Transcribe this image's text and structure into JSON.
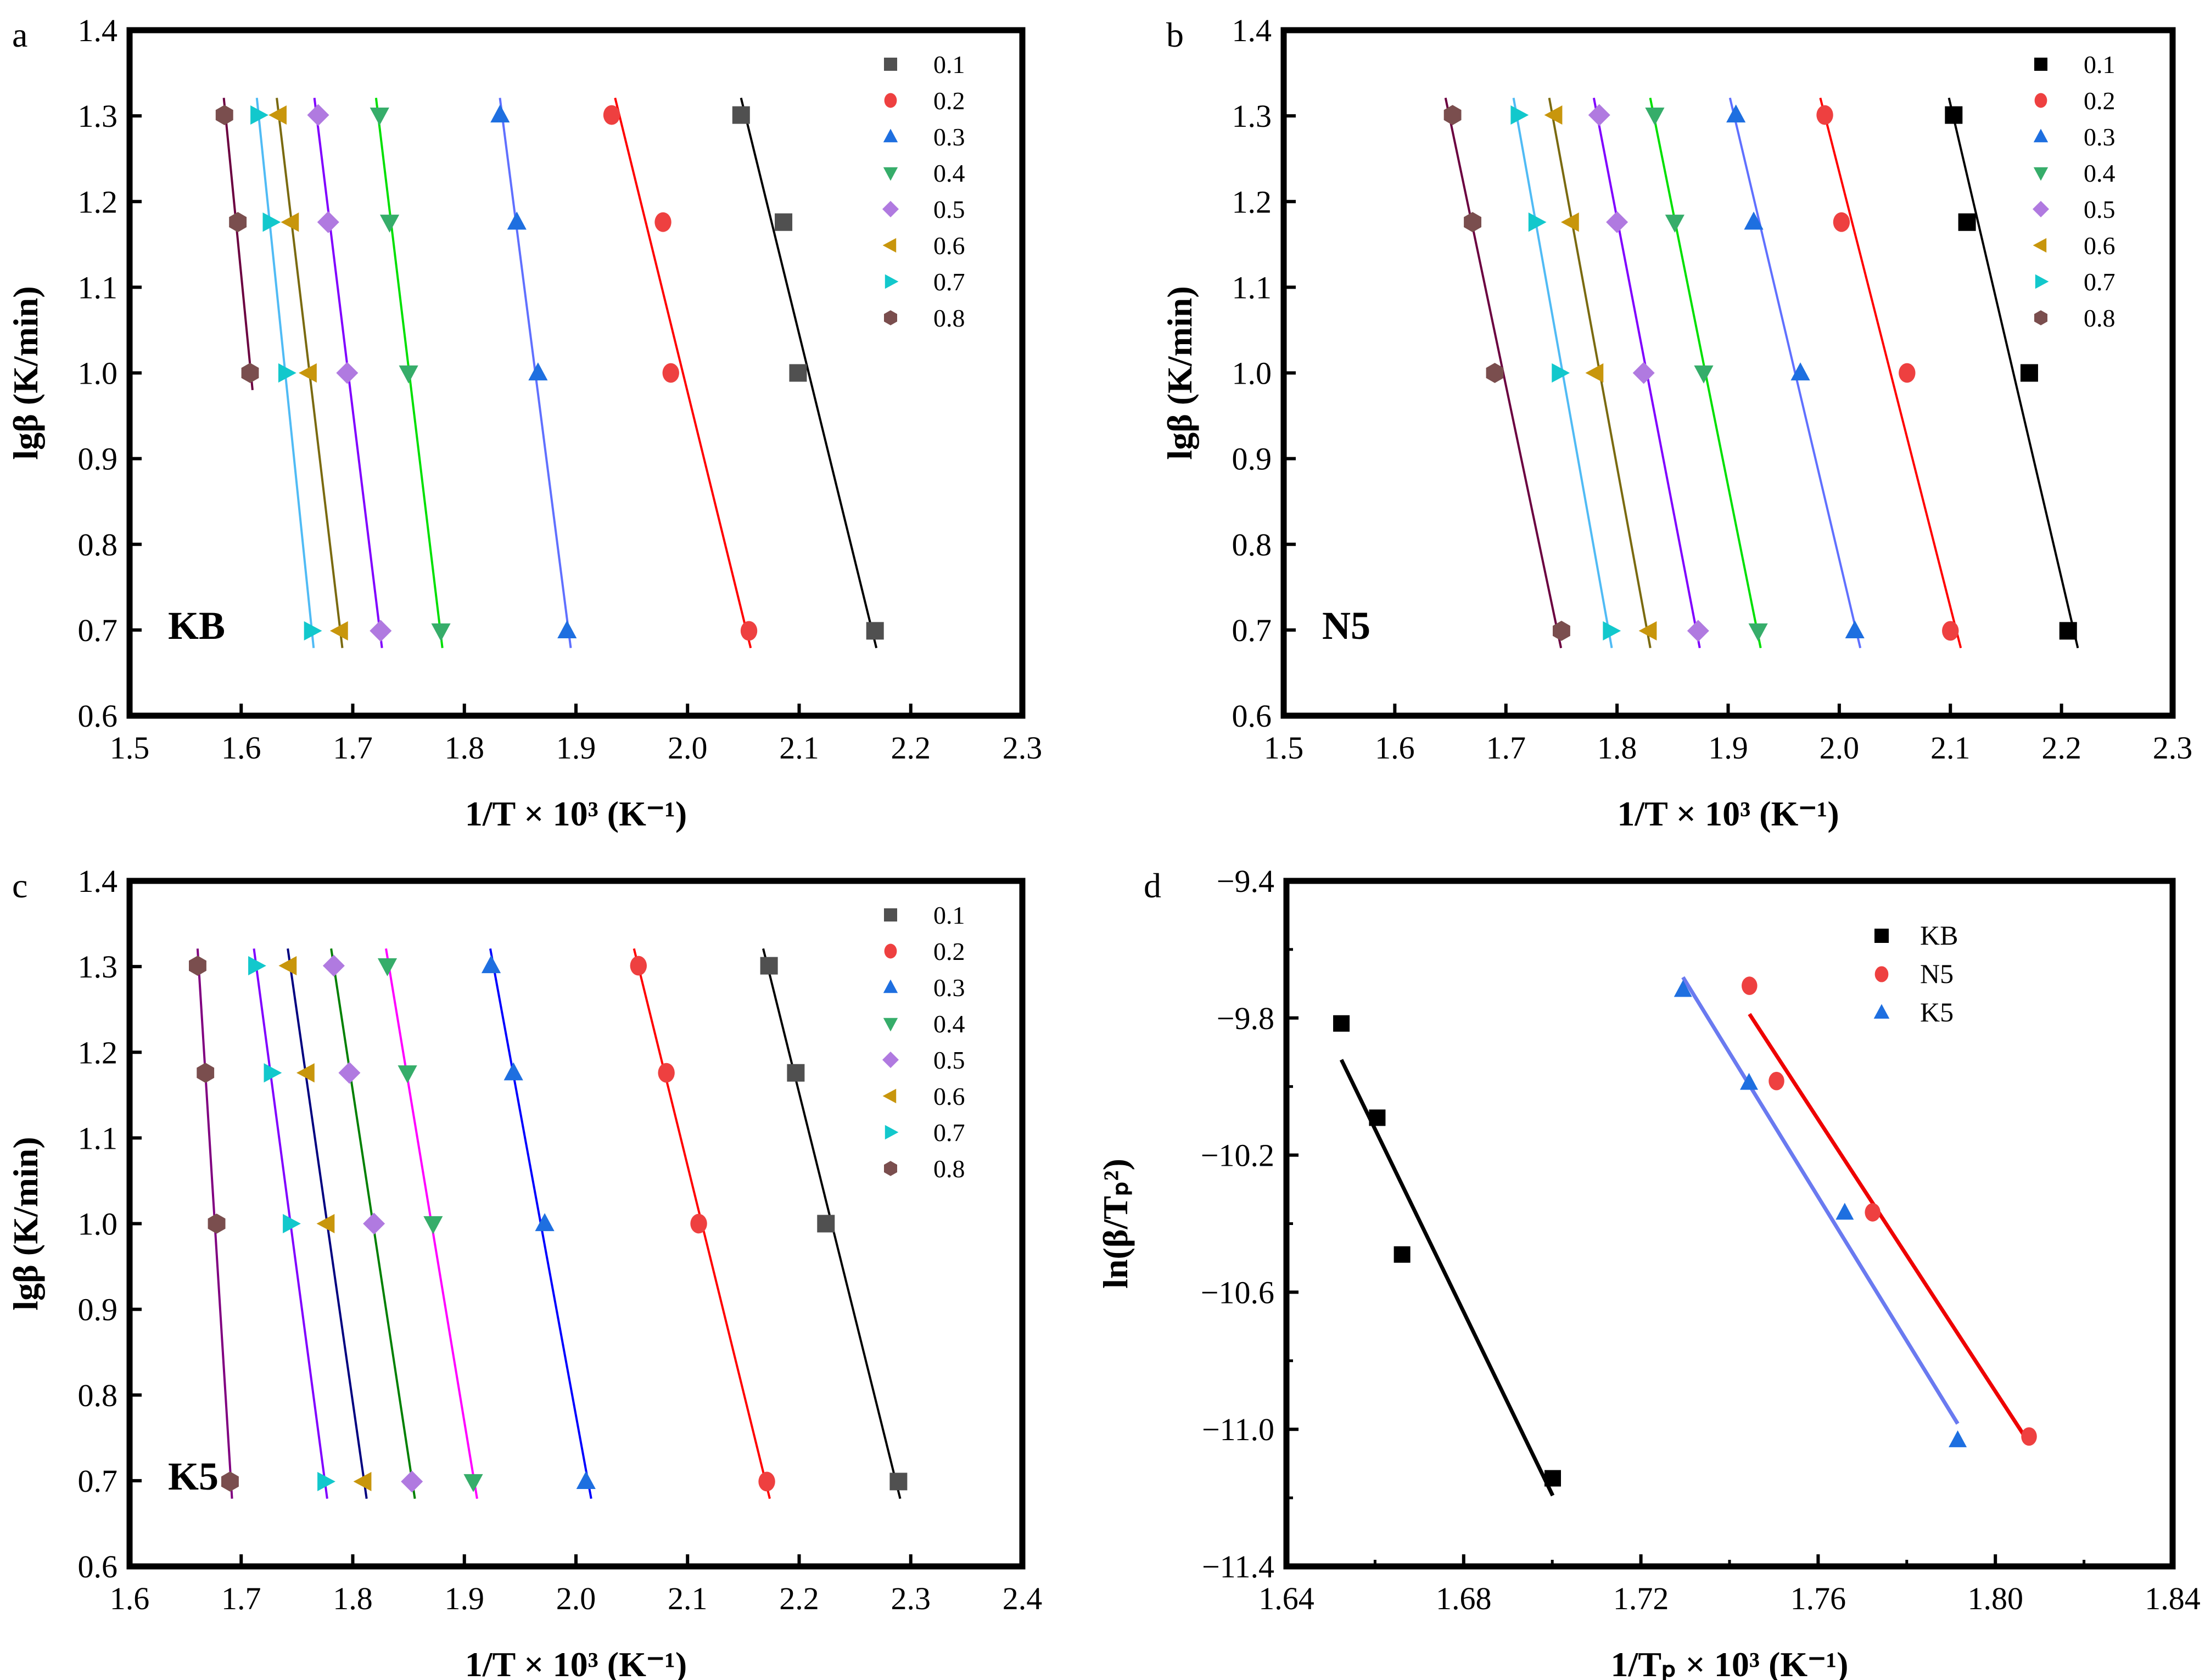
{
  "figure": {
    "background": "#ffffff"
  },
  "chart_data": [
    {
      "id": "a",
      "panel_letter": "a",
      "sample_label": "KB",
      "type": "scatter",
      "fit_lines": true,
      "xlabel": "1/T × 10³ (K⁻¹)",
      "ylabel": "lgβ (K/min)",
      "xlim": [
        1.5,
        2.3
      ],
      "ylim": [
        0.6,
        1.4
      ],
      "xticks": [
        1.5,
        1.6,
        1.7,
        1.8,
        1.9,
        2.0,
        2.1,
        2.2,
        2.3
      ],
      "xtick_labels": [
        "1.5",
        "1.6",
        "1.7",
        "1.8",
        "1.9",
        "2.0",
        "2.1",
        "2.2",
        "2.3"
      ],
      "yticks": [
        0.6,
        0.7,
        0.8,
        0.9,
        1.0,
        1.1,
        1.2,
        1.3,
        1.4
      ],
      "ytick_labels": [
        "0.6",
        "0.7",
        "0.8",
        "0.9",
        "1.0",
        "1.1",
        "1.2",
        "1.3",
        "1.4"
      ],
      "legend_position": "top-right",
      "series": [
        {
          "name": "0.1",
          "marker": "square",
          "marker_color": "#505050",
          "line_color": "#000000",
          "x": [
            2.048,
            2.086,
            2.099,
            2.168
          ],
          "y": [
            1.301,
            1.176,
            1.0,
            0.699
          ]
        },
        {
          "name": "0.2",
          "marker": "circle",
          "marker_color": "#ee4040",
          "line_color": "#ff0000",
          "x": [
            1.932,
            1.978,
            1.985,
            2.055
          ],
          "y": [
            1.301,
            1.176,
            1.0,
            0.699
          ]
        },
        {
          "name": "0.3",
          "marker": "triangle-up",
          "marker_color": "#1e6fe0",
          "line_color": "#6070ff",
          "x": [
            1.832,
            1.847,
            1.866,
            1.892
          ],
          "y": [
            1.301,
            1.176,
            1.0,
            0.699
          ]
        },
        {
          "name": "0.4",
          "marker": "triangle-down",
          "marker_color": "#36ad6a",
          "line_color": "#00e000",
          "x": [
            1.724,
            1.733,
            1.75,
            1.779
          ],
          "y": [
            1.301,
            1.176,
            1.0,
            0.699
          ]
        },
        {
          "name": "0.5",
          "marker": "diamond",
          "marker_color": "#b07ae0",
          "line_color": "#8000ff",
          "x": [
            1.669,
            1.678,
            1.695,
            1.725
          ],
          "y": [
            1.301,
            1.176,
            1.0,
            0.699
          ]
        },
        {
          "name": "0.6",
          "marker": "triangle-left",
          "marker_color": "#c8960c",
          "line_color": "#7a6a10",
          "x": [
            1.634,
            1.645,
            1.661,
            1.689
          ],
          "y": [
            1.301,
            1.176,
            1.0,
            0.699
          ]
        },
        {
          "name": "0.7",
          "marker": "triangle-right",
          "marker_color": "#12c8cc",
          "line_color": "#50bbf5",
          "x": [
            1.615,
            1.626,
            1.64,
            1.663
          ],
          "y": [
            1.301,
            1.176,
            1.0,
            0.699
          ]
        },
        {
          "name": "0.8",
          "marker": "hexagon",
          "marker_color": "#7a4e4e",
          "line_color": "#6b0040",
          "x": [
            1.585,
            1.597,
            1.608
          ],
          "y": [
            1.301,
            1.176,
            1.0
          ]
        }
      ]
    },
    {
      "id": "b",
      "panel_letter": "b",
      "sample_label": "N5",
      "type": "scatter",
      "fit_lines": true,
      "xlabel": "1/T × 10³ (K⁻¹)",
      "ylabel": "lgβ (K/min)",
      "xlim": [
        1.5,
        2.3
      ],
      "ylim": [
        0.6,
        1.4
      ],
      "xticks": [
        1.5,
        1.6,
        1.7,
        1.8,
        1.9,
        2.0,
        2.1,
        2.2,
        2.3
      ],
      "xtick_labels": [
        "1.5",
        "1.6",
        "1.7",
        "1.8",
        "1.9",
        "2.0",
        "2.1",
        "2.2",
        "2.3"
      ],
      "yticks": [
        0.6,
        0.7,
        0.8,
        0.9,
        1.0,
        1.1,
        1.2,
        1.3,
        1.4
      ],
      "ytick_labels": [
        "0.6",
        "0.7",
        "0.8",
        "0.9",
        "1.0",
        "1.1",
        "1.2",
        "1.3",
        "1.4"
      ],
      "legend_position": "top-right",
      "series": [
        {
          "name": "0.1",
          "marker": "square",
          "marker_color": "#000000",
          "line_color": "#000000",
          "x": [
            2.103,
            2.115,
            2.171,
            2.206
          ],
          "y": [
            1.301,
            1.176,
            1.0,
            0.699
          ]
        },
        {
          "name": "0.2",
          "marker": "circle",
          "marker_color": "#ee4040",
          "line_color": "#ff0000",
          "x": [
            1.987,
            2.002,
            2.061,
            2.1
          ],
          "y": [
            1.301,
            1.176,
            1.0,
            0.699
          ]
        },
        {
          "name": "0.3",
          "marker": "triangle-up",
          "marker_color": "#1e6fe0",
          "line_color": "#6070ff",
          "x": [
            1.907,
            1.923,
            1.965,
            2.014
          ],
          "y": [
            1.301,
            1.176,
            1.0,
            0.699
          ]
        },
        {
          "name": "0.4",
          "marker": "triangle-down",
          "marker_color": "#36ad6a",
          "line_color": "#00e000",
          "x": [
            1.834,
            1.852,
            1.878,
            1.927
          ],
          "y": [
            1.301,
            1.176,
            1.0,
            0.699
          ]
        },
        {
          "name": "0.5",
          "marker": "diamond",
          "marker_color": "#b07ae0",
          "line_color": "#8000ff",
          "x": [
            1.784,
            1.8,
            1.824,
            1.873
          ],
          "y": [
            1.301,
            1.176,
            1.0,
            0.699
          ]
        },
        {
          "name": "0.6",
          "marker": "triangle-left",
          "marker_color": "#c8960c",
          "line_color": "#7a6a10",
          "x": [
            1.744,
            1.759,
            1.781,
            1.829
          ],
          "y": [
            1.301,
            1.176,
            1.0,
            0.699
          ]
        },
        {
          "name": "0.7",
          "marker": "triangle-right",
          "marker_color": "#12c8cc",
          "line_color": "#50bbf5",
          "x": [
            1.711,
            1.727,
            1.748,
            1.794
          ],
          "y": [
            1.301,
            1.176,
            1.0,
            0.699
          ]
        },
        {
          "name": "0.8",
          "marker": "hexagon",
          "marker_color": "#7a4e4e",
          "line_color": "#6b0040",
          "x": [
            1.652,
            1.67,
            1.69,
            1.75
          ],
          "y": [
            1.301,
            1.176,
            1.0,
            0.699
          ]
        }
      ]
    },
    {
      "id": "c",
      "panel_letter": "c",
      "sample_label": "K5",
      "type": "scatter",
      "fit_lines": true,
      "xlabel": "1/T × 10³ (K⁻¹)",
      "ylabel": "lgβ (K/min)",
      "xlim": [
        1.6,
        2.4
      ],
      "ylim": [
        0.6,
        1.4
      ],
      "xticks": [
        1.6,
        1.7,
        1.8,
        1.9,
        2.0,
        2.1,
        2.2,
        2.3,
        2.4
      ],
      "xtick_labels": [
        "1.6",
        "1.7",
        "1.8",
        "1.9",
        "2.0",
        "2.1",
        "2.2",
        "2.3",
        "2.4"
      ],
      "yticks": [
        0.6,
        0.7,
        0.8,
        0.9,
        1.0,
        1.1,
        1.2,
        1.3,
        1.4
      ],
      "ytick_labels": [
        "0.6",
        "0.7",
        "0.8",
        "0.9",
        "1.0",
        "1.1",
        "1.2",
        "1.3",
        "1.4"
      ],
      "legend_position": "top-right",
      "series": [
        {
          "name": "0.1",
          "marker": "square",
          "marker_color": "#505050",
          "line_color": "#000000",
          "x": [
            2.173,
            2.197,
            2.224,
            2.289
          ],
          "y": [
            1.301,
            1.176,
            1.0,
            0.699
          ]
        },
        {
          "name": "0.2",
          "marker": "circle",
          "marker_color": "#ee4040",
          "line_color": "#ff0000",
          "x": [
            2.056,
            2.081,
            2.11,
            2.171
          ],
          "y": [
            1.301,
            1.176,
            1.0,
            0.699
          ]
        },
        {
          "name": "0.3",
          "marker": "triangle-up",
          "marker_color": "#1e6fe0",
          "line_color": "#0000ff",
          "x": [
            1.924,
            1.944,
            1.972,
            2.009
          ],
          "y": [
            1.301,
            1.176,
            1.0,
            0.699
          ]
        },
        {
          "name": "0.4",
          "marker": "triangle-down",
          "marker_color": "#36ad6a",
          "line_color": "#ff00ff",
          "x": [
            1.831,
            1.849,
            1.872,
            1.908
          ],
          "y": [
            1.301,
            1.176,
            1.0,
            0.699
          ]
        },
        {
          "name": "0.5",
          "marker": "diamond",
          "marker_color": "#b07ae0",
          "line_color": "#008000",
          "x": [
            1.783,
            1.797,
            1.819,
            1.853
          ],
          "y": [
            1.301,
            1.176,
            1.0,
            0.699
          ]
        },
        {
          "name": "0.6",
          "marker": "triangle-left",
          "marker_color": "#c8960c",
          "line_color": "#000080",
          "x": [
            1.743,
            1.759,
            1.777,
            1.81
          ],
          "y": [
            1.301,
            1.176,
            1.0,
            0.699
          ]
        },
        {
          "name": "0.7",
          "marker": "triangle-right",
          "marker_color": "#12c8cc",
          "line_color": "#8000ff",
          "x": [
            1.713,
            1.727,
            1.744,
            1.775
          ],
          "y": [
            1.301,
            1.176,
            1.0,
            0.699
          ]
        },
        {
          "name": "0.8",
          "marker": "hexagon",
          "marker_color": "#7a4e4e",
          "line_color": "#800080",
          "x": [
            1.661,
            1.668,
            1.678,
            1.69
          ],
          "y": [
            1.301,
            1.176,
            1.0,
            0.699
          ]
        }
      ]
    },
    {
      "id": "d",
      "panel_letter": "d",
      "sample_label": "",
      "type": "scatter",
      "fit_lines": true,
      "xlabel": "1/Tₚ × 10³ (K⁻¹)",
      "ylabel": "ln(β/Tₚ²)",
      "xlim": [
        1.64,
        1.84
      ],
      "ylim": [
        -11.4,
        -9.4
      ],
      "xticks": [
        1.64,
        1.68,
        1.72,
        1.76,
        1.8,
        1.84
      ],
      "xtick_labels": [
        "1.64",
        "1.68",
        "1.72",
        "1.76",
        "1.80",
        "1.84"
      ],
      "x_minor_ticks": [
        1.66,
        1.7,
        1.74,
        1.78,
        1.82
      ],
      "yticks": [
        -11.4,
        -11.0,
        -10.6,
        -10.2,
        -9.8,
        -9.4
      ],
      "ytick_labels": [
        "−11.4",
        "−11.0",
        "−10.6",
        "−10.2",
        "−9.8",
        "−9.4"
      ],
      "y_minor_ticks": [
        -11.2,
        -10.8,
        -10.4,
        -10.0,
        -9.6
      ],
      "legend_position": "top-right",
      "series": [
        {
          "name": "KB",
          "marker": "square",
          "marker_color": "#000000",
          "line_color": "#000000",
          "x": [
            1.6524,
            1.6605,
            1.6661,
            1.7001
          ],
          "y": [
            -9.816,
            -10.091,
            -10.49,
            -11.143
          ]
        },
        {
          "name": "N5",
          "marker": "circle",
          "marker_color": "#ee4040",
          "line_color": "#ee0000",
          "x": [
            1.7445,
            1.7506,
            1.7723,
            1.8076
          ],
          "y": [
            -9.706,
            -9.984,
            -10.367,
            -11.021
          ]
        },
        {
          "name": "K5",
          "marker": "triangle-up",
          "marker_color": "#1e6fe0",
          "line_color": "#6a7af0",
          "x": [
            1.7295,
            1.7444,
            1.766,
            1.7915
          ],
          "y": [
            -9.718,
            -9.989,
            -10.368,
            -11.032
          ]
        }
      ]
    }
  ]
}
